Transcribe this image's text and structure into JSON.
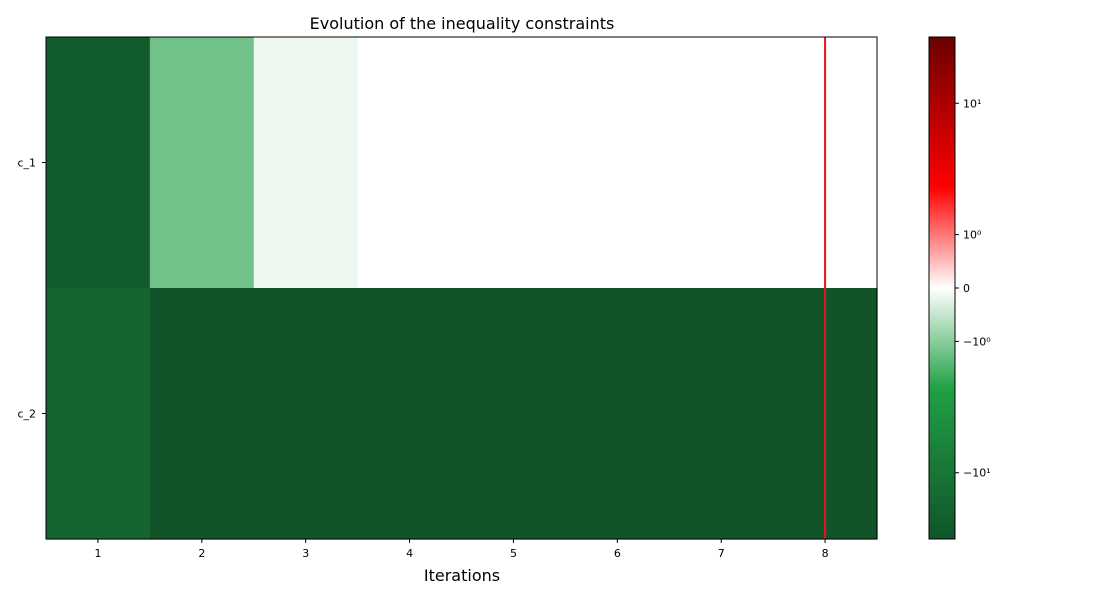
{
  "chart_data": {
    "type": "heatmap",
    "title": "Evolution of the inequality constraints",
    "xlabel": "Iterations",
    "ylabel": "",
    "x": [
      1,
      2,
      3,
      4,
      5,
      6,
      7,
      8
    ],
    "y_categories": [
      "c_1",
      "c_2"
    ],
    "values": [
      [
        -20,
        -1.3,
        -0.12,
        0,
        0,
        0,
        0,
        0.002
      ],
      [
        -16,
        -25,
        -25,
        -25,
        -25,
        -25,
        -25,
        -25
      ]
    ],
    "colorbar": {
      "scale": "symlog",
      "range": [
        -25,
        25
      ],
      "ticks": [
        -10,
        -1,
        0,
        1,
        10
      ],
      "tick_labels": [
        "−10¹",
        "−10⁰",
        "0",
        "10⁰",
        "10¹"
      ],
      "colors": {
        "negative": "#11542a",
        "mid_negative": "#21a045",
        "zero": "#ffffff",
        "mid_positive": "#ff0000",
        "positive": "#6b0000"
      }
    },
    "marker_line": {
      "x": 8,
      "color": "#e8141a"
    },
    "grid": false
  }
}
